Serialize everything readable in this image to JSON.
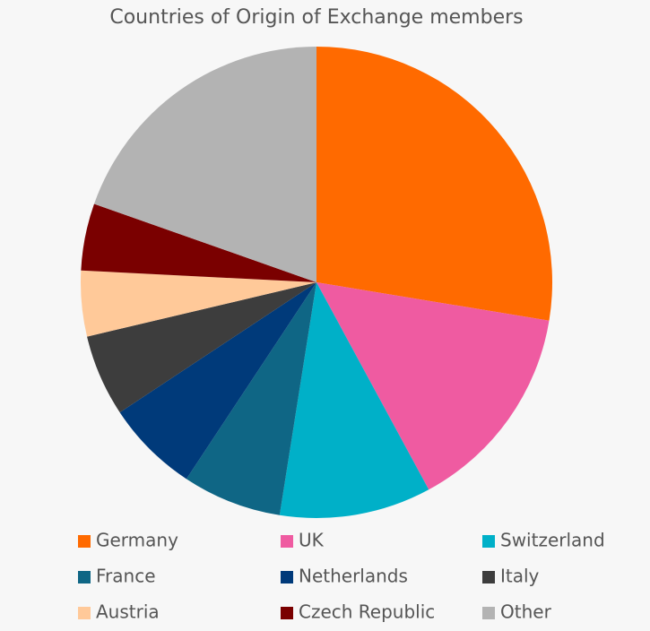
{
  "chart_data": {
    "type": "pie",
    "title": "Countries of Origin of Exchange members",
    "categories": [
      "Germany",
      "UK",
      "Switzerland",
      "France",
      "Netherlands",
      "Italy",
      "Austria",
      "Czech Republic",
      "Other"
    ],
    "values": [
      27.6,
      14.5,
      10.4,
      6.8,
      6.4,
      5.6,
      4.5,
      4.6,
      19.6
    ],
    "colors": [
      "#ff6a00",
      "#ef5ba1",
      "#00b0c8",
      "#0f6685",
      "#003a7a",
      "#3d3d3d",
      "#ffc999",
      "#7a0000",
      "#b3b3b3"
    ],
    "legend": "bottom"
  }
}
